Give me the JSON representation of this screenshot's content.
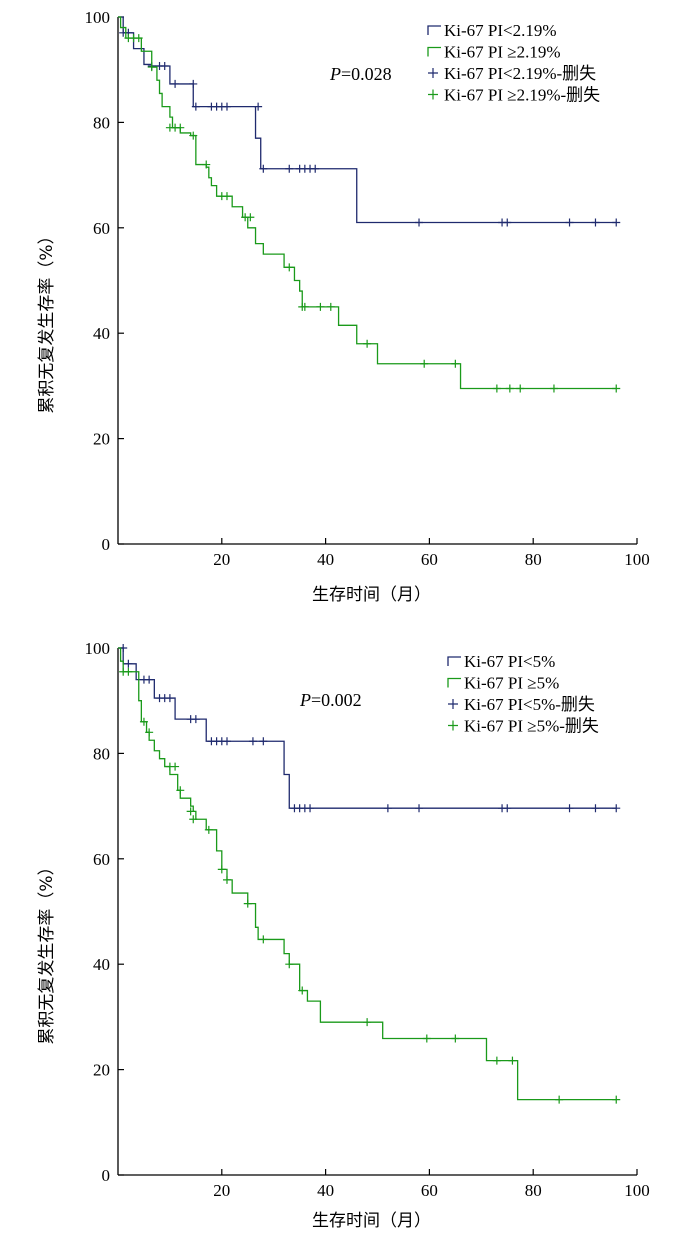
{
  "chart_data": [
    {
      "type": "line",
      "subtype": "kaplan-meier",
      "p_value_prefix": "P",
      "p_value_suffix": "=0.028",
      "xlabel": "生存时间（月）",
      "ylabel": "累积无复发生存率（%）",
      "xlim": [
        0,
        100
      ],
      "ylim": [
        0,
        100
      ],
      "xticks": [
        "20",
        "40",
        "60",
        "80",
        "100"
      ],
      "yticks": [
        "0",
        "20",
        "40",
        "60",
        "80",
        "100"
      ],
      "legend_position": "top-right",
      "legend": [
        {
          "label": "Ki-67 PI<2.19%",
          "marker": "step",
          "color": "#1f2a6e"
        },
        {
          "label": "Ki-67 PI ≥2.19%",
          "marker": "step",
          "color": "#1a9a1a"
        },
        {
          "label": "Ki-67 PI<2.19%-删失",
          "marker": "plus",
          "color": "#1f2a6e"
        },
        {
          "label": "Ki-67 PI ≥2.19%-删失",
          "marker": "plus",
          "color": "#1a9a1a"
        }
      ],
      "series": [
        {
          "name": "Ki-67 PI<2.19%",
          "color": "#1f2a6e",
          "x": [
            0,
            1,
            3,
            5,
            6.5,
            10,
            14.5,
            26.5,
            27.5,
            46
          ],
          "y": [
            100,
            97,
            94,
            91,
            90.7,
            87.3,
            83,
            77,
            71.2,
            61
          ],
          "end_x": 96,
          "censored": [
            {
              "x": 1,
              "y": 97
            },
            {
              "x": 2,
              "y": 97
            },
            {
              "x": 6.5,
              "y": 90.7
            },
            {
              "x": 8,
              "y": 90.7
            },
            {
              "x": 9,
              "y": 90.7
            },
            {
              "x": 11,
              "y": 87.3
            },
            {
              "x": 14.5,
              "y": 87.3
            },
            {
              "x": 15,
              "y": 83
            },
            {
              "x": 18,
              "y": 83
            },
            {
              "x": 19,
              "y": 83
            },
            {
              "x": 20,
              "y": 83
            },
            {
              "x": 21,
              "y": 83
            },
            {
              "x": 27,
              "y": 83
            },
            {
              "x": 28,
              "y": 71.2
            },
            {
              "x": 33,
              "y": 71.2
            },
            {
              "x": 35,
              "y": 71.2
            },
            {
              "x": 36,
              "y": 71.2
            },
            {
              "x": 37,
              "y": 71.2
            },
            {
              "x": 38,
              "y": 71.2
            },
            {
              "x": 58,
              "y": 61
            },
            {
              "x": 74,
              "y": 61
            },
            {
              "x": 75,
              "y": 61
            },
            {
              "x": 87,
              "y": 61
            },
            {
              "x": 92,
              "y": 61
            },
            {
              "x": 96,
              "y": 61
            }
          ]
        },
        {
          "name": "Ki-67 PI ≥2.19%",
          "color": "#1a9a1a",
          "x": [
            0,
            0.5,
            1.5,
            4.5,
            6.5,
            7.5,
            8,
            8.5,
            10,
            10.5,
            12,
            14,
            15,
            17,
            17.5,
            18,
            19,
            22,
            24,
            25,
            26.5,
            28,
            32,
            34,
            35,
            35.5,
            40,
            42.5,
            46,
            50,
            66
          ],
          "y": [
            100,
            98,
            96,
            93.5,
            90.5,
            88,
            85.5,
            83,
            81,
            79,
            78,
            77.5,
            72,
            71.5,
            69.5,
            68,
            66,
            64,
            62,
            60,
            57,
            55,
            52.5,
            50,
            48,
            45,
            45,
            41.5,
            38,
            34.2,
            29.5
          ],
          "end_x": 96,
          "censored": [
            {
              "x": 2,
              "y": 96
            },
            {
              "x": 3,
              "y": 96
            },
            {
              "x": 4,
              "y": 96
            },
            {
              "x": 6.5,
              "y": 90.5
            },
            {
              "x": 10,
              "y": 79
            },
            {
              "x": 11,
              "y": 79
            },
            {
              "x": 12,
              "y": 79
            },
            {
              "x": 14.5,
              "y": 77.5
            },
            {
              "x": 17,
              "y": 72
            },
            {
              "x": 20,
              "y": 66
            },
            {
              "x": 21,
              "y": 66
            },
            {
              "x": 24.5,
              "y": 62
            },
            {
              "x": 25.5,
              "y": 62
            },
            {
              "x": 33,
              "y": 52.5
            },
            {
              "x": 35.5,
              "y": 45
            },
            {
              "x": 36,
              "y": 45
            },
            {
              "x": 39,
              "y": 45
            },
            {
              "x": 41,
              "y": 45
            },
            {
              "x": 48,
              "y": 38
            },
            {
              "x": 59,
              "y": 34.2
            },
            {
              "x": 65,
              "y": 34.2
            },
            {
              "x": 73,
              "y": 29.5
            },
            {
              "x": 75.5,
              "y": 29.5
            },
            {
              "x": 77.5,
              "y": 29.5
            },
            {
              "x": 84,
              "y": 29.5
            },
            {
              "x": 96,
              "y": 29.5
            }
          ]
        }
      ]
    },
    {
      "type": "line",
      "subtype": "kaplan-meier",
      "p_value_prefix": "P",
      "p_value_suffix": "=0.002",
      "xlabel": "生存时间（月）",
      "ylabel": "累积无复发生存率（%）",
      "xlim": [
        0,
        100
      ],
      "ylim": [
        0,
        100
      ],
      "xticks": [
        "20",
        "40",
        "60",
        "80",
        "100"
      ],
      "yticks": [
        "0",
        "20",
        "40",
        "60",
        "80",
        "100"
      ],
      "legend_position": "top-right",
      "legend": [
        {
          "label": "Ki-67 PI<5%",
          "marker": "step",
          "color": "#1f2a6e"
        },
        {
          "label": "Ki-67 PI ≥5%",
          "marker": "step",
          "color": "#1a9a1a"
        },
        {
          "label": "Ki-67 PI<5%-删失",
          "marker": "plus",
          "color": "#1f2a6e"
        },
        {
          "label": "Ki-67 PI ≥5%-删失",
          "marker": "plus",
          "color": "#1a9a1a"
        }
      ],
      "series": [
        {
          "name": "Ki-67 PI<5%",
          "color": "#1f2a6e",
          "x": [
            0,
            1,
            3.5,
            7,
            11,
            17,
            32,
            33
          ],
          "y": [
            100,
            97,
            94,
            90.5,
            86.5,
            82.3,
            76,
            69.6
          ],
          "end_x": 96,
          "censored": [
            {
              "x": 1,
              "y": 100
            },
            {
              "x": 2,
              "y": 97
            },
            {
              "x": 5,
              "y": 94
            },
            {
              "x": 6,
              "y": 94
            },
            {
              "x": 8,
              "y": 90.5
            },
            {
              "x": 9,
              "y": 90.5
            },
            {
              "x": 10,
              "y": 90.5
            },
            {
              "x": 14,
              "y": 86.5
            },
            {
              "x": 15,
              "y": 86.5
            },
            {
              "x": 18,
              "y": 82.3
            },
            {
              "x": 19,
              "y": 82.3
            },
            {
              "x": 20,
              "y": 82.3
            },
            {
              "x": 21,
              "y": 82.3
            },
            {
              "x": 26,
              "y": 82.3
            },
            {
              "x": 28,
              "y": 82.3
            },
            {
              "x": 34,
              "y": 69.6
            },
            {
              "x": 35,
              "y": 69.6
            },
            {
              "x": 36,
              "y": 69.6
            },
            {
              "x": 37,
              "y": 69.6
            },
            {
              "x": 52,
              "y": 69.6
            },
            {
              "x": 58,
              "y": 69.6
            },
            {
              "x": 74,
              "y": 69.6
            },
            {
              "x": 75,
              "y": 69.6
            },
            {
              "x": 87,
              "y": 69.6
            },
            {
              "x": 92,
              "y": 69.6
            },
            {
              "x": 96,
              "y": 69.6
            }
          ]
        },
        {
          "name": "Ki-67 PI ≥5%",
          "color": "#1a9a1a",
          "x": [
            0,
            0.5,
            1,
            4,
            4.5,
            5.5,
            6,
            7,
            8,
            9,
            10,
            11.5,
            12,
            14,
            14.5,
            15,
            17,
            19,
            20,
            21,
            22,
            25,
            26.5,
            27,
            32,
            33,
            35,
            36.5,
            39,
            51,
            71,
            77
          ],
          "y": [
            100,
            97.5,
            95.5,
            90,
            86,
            84,
            82.5,
            80.5,
            79,
            77.5,
            76,
            73,
            71.5,
            70,
            69,
            67.5,
            65.5,
            61.5,
            58,
            56,
            53.5,
            51.5,
            47,
            44.7,
            42,
            40,
            35,
            33,
            29,
            25.9,
            21.7,
            14.3
          ],
          "end_x": 96,
          "censored": [
            {
              "x": 1,
              "y": 95.5
            },
            {
              "x": 2,
              "y": 95.5
            },
            {
              "x": 5,
              "y": 86
            },
            {
              "x": 6,
              "y": 84
            },
            {
              "x": 10,
              "y": 77.5
            },
            {
              "x": 11,
              "y": 77.5
            },
            {
              "x": 12,
              "y": 73
            },
            {
              "x": 14,
              "y": 69
            },
            {
              "x": 14.5,
              "y": 67.5
            },
            {
              "x": 17.5,
              "y": 65.5
            },
            {
              "x": 20,
              "y": 58
            },
            {
              "x": 21,
              "y": 56
            },
            {
              "x": 25,
              "y": 51.5
            },
            {
              "x": 28,
              "y": 44.7
            },
            {
              "x": 33,
              "y": 40
            },
            {
              "x": 35.5,
              "y": 35
            },
            {
              "x": 48,
              "y": 29
            },
            {
              "x": 59.5,
              "y": 25.9
            },
            {
              "x": 65,
              "y": 25.9
            },
            {
              "x": 73,
              "y": 21.7
            },
            {
              "x": 76,
              "y": 21.7
            },
            {
              "x": 85,
              "y": 14.3
            },
            {
              "x": 96,
              "y": 14.3
            }
          ]
        }
      ]
    }
  ]
}
